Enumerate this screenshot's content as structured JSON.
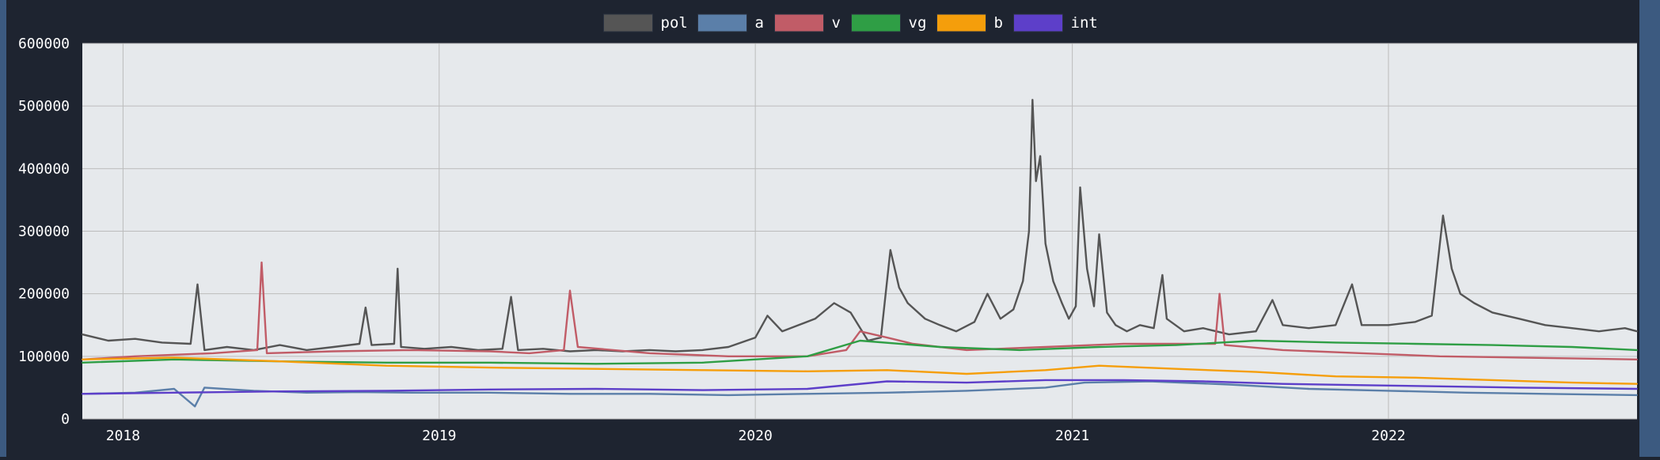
{
  "colors": {
    "background": "#1e2430",
    "plot_bg": "#e6e9ec",
    "grid": "#bcbcbc",
    "text": "#ffffff",
    "accent_edge": "#3c5a80"
  },
  "chart_data": {
    "type": "line",
    "title": "",
    "xlabel": "",
    "ylabel": "",
    "legend_position": "top-center",
    "grid": true,
    "x_range": [
      "2017-11-15",
      "2022-10-15"
    ],
    "ylim": [
      0,
      600000
    ],
    "y_ticks": [
      "600000",
      "500000",
      "400000",
      "300000",
      "200000",
      "100000",
      "0"
    ],
    "x_ticks": [
      {
        "label": "2018",
        "date": "2018-01-01"
      },
      {
        "label": "2019",
        "date": "2019-01-01"
      },
      {
        "label": "2020",
        "date": "2020-01-01"
      },
      {
        "label": "2021",
        "date": "2021-01-01"
      },
      {
        "label": "2022",
        "date": "2022-01-01"
      }
    ],
    "series": [
      {
        "name": "pol",
        "color": "#555555",
        "points": [
          [
            "2017-11-15",
            135000
          ],
          [
            "2017-12-15",
            125000
          ],
          [
            "2018-01-15",
            128000
          ],
          [
            "2018-02-15",
            122000
          ],
          [
            "2018-03-20",
            120000
          ],
          [
            "2018-03-28",
            215000
          ],
          [
            "2018-04-05",
            110000
          ],
          [
            "2018-05-01",
            115000
          ],
          [
            "2018-06-01",
            110000
          ],
          [
            "2018-07-01",
            118000
          ],
          [
            "2018-08-01",
            110000
          ],
          [
            "2018-09-01",
            115000
          ],
          [
            "2018-10-01",
            120000
          ],
          [
            "2018-10-08",
            178000
          ],
          [
            "2018-10-15",
            118000
          ],
          [
            "2018-11-10",
            120000
          ],
          [
            "2018-11-14",
            240000
          ],
          [
            "2018-11-18",
            115000
          ],
          [
            "2018-12-15",
            112000
          ],
          [
            "2019-01-15",
            115000
          ],
          [
            "2019-02-15",
            110000
          ],
          [
            "2019-03-15",
            112000
          ],
          [
            "2019-03-25",
            195000
          ],
          [
            "2019-04-02",
            110000
          ],
          [
            "2019-05-01",
            112000
          ],
          [
            "2019-06-01",
            108000
          ],
          [
            "2019-07-01",
            110000
          ],
          [
            "2019-08-01",
            108000
          ],
          [
            "2019-09-01",
            110000
          ],
          [
            "2019-10-01",
            108000
          ],
          [
            "2019-11-01",
            110000
          ],
          [
            "2019-12-01",
            115000
          ],
          [
            "2020-01-01",
            130000
          ],
          [
            "2020-01-15",
            165000
          ],
          [
            "2020-02-01",
            140000
          ],
          [
            "2020-02-20",
            150000
          ],
          [
            "2020-03-10",
            160000
          ],
          [
            "2020-04-01",
            185000
          ],
          [
            "2020-04-20",
            170000
          ],
          [
            "2020-05-10",
            125000
          ],
          [
            "2020-05-25",
            130000
          ],
          [
            "2020-06-05",
            270000
          ],
          [
            "2020-06-15",
            210000
          ],
          [
            "2020-06-25",
            185000
          ],
          [
            "2020-07-15",
            160000
          ],
          [
            "2020-08-01",
            150000
          ],
          [
            "2020-08-20",
            140000
          ],
          [
            "2020-09-10",
            155000
          ],
          [
            "2020-09-25",
            200000
          ],
          [
            "2020-10-10",
            160000
          ],
          [
            "2020-10-25",
            175000
          ],
          [
            "2020-11-05",
            220000
          ],
          [
            "2020-11-12",
            300000
          ],
          [
            "2020-11-16",
            510000
          ],
          [
            "2020-11-20",
            380000
          ],
          [
            "2020-11-25",
            420000
          ],
          [
            "2020-12-01",
            280000
          ],
          [
            "2020-12-10",
            220000
          ],
          [
            "2020-12-20",
            185000
          ],
          [
            "2020-12-28",
            160000
          ],
          [
            "2021-01-05",
            180000
          ],
          [
            "2021-01-10",
            370000
          ],
          [
            "2021-01-18",
            240000
          ],
          [
            "2021-01-26",
            180000
          ],
          [
            "2021-02-01",
            295000
          ],
          [
            "2021-02-10",
            170000
          ],
          [
            "2021-02-20",
            150000
          ],
          [
            "2021-03-05",
            140000
          ],
          [
            "2021-03-20",
            150000
          ],
          [
            "2021-04-05",
            145000
          ],
          [
            "2021-04-15",
            230000
          ],
          [
            "2021-04-20",
            160000
          ],
          [
            "2021-05-10",
            140000
          ],
          [
            "2021-06-01",
            145000
          ],
          [
            "2021-07-01",
            135000
          ],
          [
            "2021-08-01",
            140000
          ],
          [
            "2021-08-20",
            190000
          ],
          [
            "2021-09-01",
            150000
          ],
          [
            "2021-10-01",
            145000
          ],
          [
            "2021-11-01",
            150000
          ],
          [
            "2021-11-20",
            215000
          ],
          [
            "2021-12-01",
            150000
          ],
          [
            "2022-01-01",
            150000
          ],
          [
            "2022-02-01",
            155000
          ],
          [
            "2022-02-20",
            165000
          ],
          [
            "2022-03-05",
            325000
          ],
          [
            "2022-03-15",
            240000
          ],
          [
            "2022-03-25",
            200000
          ],
          [
            "2022-04-10",
            185000
          ],
          [
            "2022-05-01",
            170000
          ],
          [
            "2022-06-01",
            160000
          ],
          [
            "2022-07-01",
            150000
          ],
          [
            "2022-08-01",
            145000
          ],
          [
            "2022-09-01",
            140000
          ],
          [
            "2022-10-01",
            145000
          ],
          [
            "2022-10-15",
            140000
          ]
        ]
      },
      {
        "name": "a",
        "color": "#5b7fa9",
        "points": [
          [
            "2017-11-15",
            40000
          ],
          [
            "2018-01-15",
            42000
          ],
          [
            "2018-03-01",
            48000
          ],
          [
            "2018-03-25",
            20000
          ],
          [
            "2018-04-05",
            50000
          ],
          [
            "2018-06-01",
            45000
          ],
          [
            "2018-08-01",
            42000
          ],
          [
            "2018-10-01",
            43000
          ],
          [
            "2018-12-01",
            42000
          ],
          [
            "2019-03-01",
            42000
          ],
          [
            "2019-06-01",
            40000
          ],
          [
            "2019-09-01",
            40000
          ],
          [
            "2019-12-01",
            38000
          ],
          [
            "2020-03-01",
            40000
          ],
          [
            "2020-06-01",
            42000
          ],
          [
            "2020-09-01",
            45000
          ],
          [
            "2020-12-01",
            50000
          ],
          [
            "2021-01-15",
            58000
          ],
          [
            "2021-04-01",
            60000
          ],
          [
            "2021-07-01",
            55000
          ],
          [
            "2021-10-01",
            48000
          ],
          [
            "2022-01-01",
            45000
          ],
          [
            "2022-04-01",
            42000
          ],
          [
            "2022-07-01",
            40000
          ],
          [
            "2022-10-15",
            38000
          ]
        ]
      },
      {
        "name": "v",
        "color": "#c15c67",
        "points": [
          [
            "2017-11-15",
            95000
          ],
          [
            "2018-01-15",
            100000
          ],
          [
            "2018-04-15",
            105000
          ],
          [
            "2018-06-05",
            110000
          ],
          [
            "2018-06-10",
            250000
          ],
          [
            "2018-06-16",
            105000
          ],
          [
            "2018-09-01",
            108000
          ],
          [
            "2018-12-01",
            110000
          ],
          [
            "2019-03-01",
            108000
          ],
          [
            "2019-04-15",
            105000
          ],
          [
            "2019-05-25",
            110000
          ],
          [
            "2019-06-01",
            205000
          ],
          [
            "2019-06-10",
            115000
          ],
          [
            "2019-09-01",
            105000
          ],
          [
            "2019-12-01",
            100000
          ],
          [
            "2020-03-01",
            100000
          ],
          [
            "2020-04-15",
            110000
          ],
          [
            "2020-05-01",
            140000
          ],
          [
            "2020-06-01",
            130000
          ],
          [
            "2020-07-01",
            120000
          ],
          [
            "2020-09-01",
            110000
          ],
          [
            "2020-12-01",
            115000
          ],
          [
            "2021-03-01",
            120000
          ],
          [
            "2021-06-15",
            120000
          ],
          [
            "2021-06-20",
            200000
          ],
          [
            "2021-06-26",
            118000
          ],
          [
            "2021-09-01",
            110000
          ],
          [
            "2021-12-01",
            105000
          ],
          [
            "2022-03-01",
            100000
          ],
          [
            "2022-06-01",
            98000
          ],
          [
            "2022-10-15",
            95000
          ]
        ]
      },
      {
        "name": "vg",
        "color": "#2f9e45",
        "points": [
          [
            "2017-11-15",
            90000
          ],
          [
            "2018-03-01",
            95000
          ],
          [
            "2018-07-01",
            92000
          ],
          [
            "2018-11-01",
            90000
          ],
          [
            "2019-03-01",
            90000
          ],
          [
            "2019-07-01",
            88000
          ],
          [
            "2019-11-01",
            90000
          ],
          [
            "2020-03-01",
            100000
          ],
          [
            "2020-05-01",
            125000
          ],
          [
            "2020-08-01",
            115000
          ],
          [
            "2020-11-01",
            110000
          ],
          [
            "2021-02-01",
            115000
          ],
          [
            "2021-05-01",
            118000
          ],
          [
            "2021-08-01",
            125000
          ],
          [
            "2021-11-01",
            122000
          ],
          [
            "2022-02-01",
            120000
          ],
          [
            "2022-05-01",
            118000
          ],
          [
            "2022-08-01",
            115000
          ],
          [
            "2022-10-15",
            110000
          ]
        ]
      },
      {
        "name": "b",
        "color": "#f59e0b",
        "points": [
          [
            "2017-11-15",
            95000
          ],
          [
            "2018-03-01",
            98000
          ],
          [
            "2018-07-01",
            92000
          ],
          [
            "2018-11-01",
            85000
          ],
          [
            "2019-03-01",
            82000
          ],
          [
            "2019-07-01",
            80000
          ],
          [
            "2019-11-01",
            78000
          ],
          [
            "2020-03-01",
            76000
          ],
          [
            "2020-06-01",
            78000
          ],
          [
            "2020-09-01",
            72000
          ],
          [
            "2020-12-01",
            78000
          ],
          [
            "2021-02-01",
            85000
          ],
          [
            "2021-05-01",
            80000
          ],
          [
            "2021-08-01",
            75000
          ],
          [
            "2021-11-01",
            68000
          ],
          [
            "2022-02-01",
            66000
          ],
          [
            "2022-05-01",
            62000
          ],
          [
            "2022-08-01",
            58000
          ],
          [
            "2022-10-15",
            56000
          ]
        ]
      },
      {
        "name": "int",
        "color": "#5d3fc9",
        "points": [
          [
            "2017-11-15",
            40000
          ],
          [
            "2018-03-01",
            42000
          ],
          [
            "2018-07-01",
            44000
          ],
          [
            "2018-11-01",
            45000
          ],
          [
            "2019-03-01",
            47000
          ],
          [
            "2019-07-01",
            48000
          ],
          [
            "2019-11-01",
            46000
          ],
          [
            "2020-03-01",
            48000
          ],
          [
            "2020-06-01",
            60000
          ],
          [
            "2020-09-01",
            58000
          ],
          [
            "2020-12-01",
            62000
          ],
          [
            "2021-03-01",
            62000
          ],
          [
            "2021-06-01",
            60000
          ],
          [
            "2021-09-01",
            56000
          ],
          [
            "2021-12-01",
            54000
          ],
          [
            "2022-03-01",
            52000
          ],
          [
            "2022-06-01",
            50000
          ],
          [
            "2022-10-15",
            48000
          ]
        ]
      }
    ]
  }
}
